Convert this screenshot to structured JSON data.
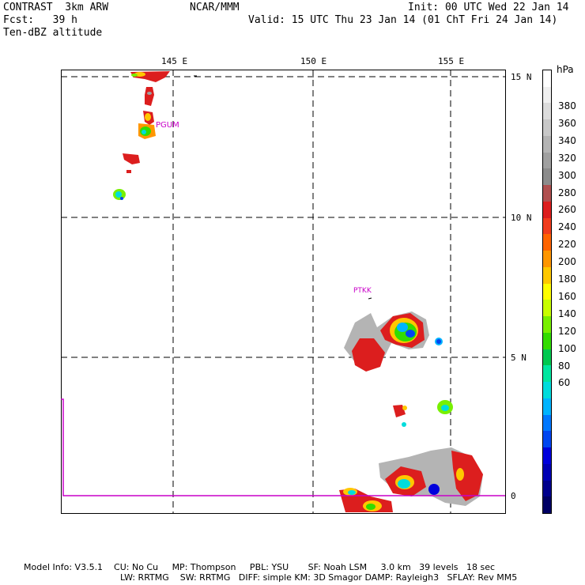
{
  "header": {
    "model": "CONTRAST  3km ARW",
    "forecast": "Fcst:   39 h",
    "field": "Ten-dBZ altitude",
    "center": "NCAR/MMM",
    "init": "Init: 00 UTC Wed 22 Jan 14",
    "valid": "Valid: 15 UTC Thu 23 Jan 14 (01 ChT Fri 24 Jan 14)"
  },
  "lon_labels": [
    "145 E",
    "150 E",
    "155 E"
  ],
  "lat_labels": [
    "15 N",
    "10 N",
    "5 N",
    "0"
  ],
  "stations": [
    "PGUM",
    "PTKK"
  ],
  "colorbar": {
    "unit": "hPa",
    "labels": [
      "380",
      "360",
      "340",
      "320",
      "300",
      "280",
      "260",
      "240",
      "220",
      "200",
      "180",
      "160",
      "140",
      "120",
      "100",
      "80",
      "60"
    ],
    "colors": [
      "#ffffff",
      "#f0f0f0",
      "#dcdcdc",
      "#c8c8c8",
      "#b4b4b4",
      "#a0a0a0",
      "#8c8c8c",
      "#b05050",
      "#dc1e1e",
      "#f03c1e",
      "#ff6400",
      "#ff9600",
      "#ffc800",
      "#ffff00",
      "#c8ff00",
      "#78f000",
      "#32dc00",
      "#00c850",
      "#00e6a0",
      "#00dcdc",
      "#00b4ff",
      "#0078ff",
      "#0046f0",
      "#0000dc",
      "#0000b4",
      "#00008c",
      "#000064"
    ]
  },
  "footer": {
    "line1": "Model Info: V3.5.1    CU: No Cu     MP: Thompson     PBL: YSU       SF: Noah LSM     3.0 km   39 levels   18 sec",
    "line2": "LW: RRTMG    SW: RRTMG   DIFF: simple KM: 3D Smagor DAMP: Rayleigh3   SFLAY: Rev MM5"
  }
}
